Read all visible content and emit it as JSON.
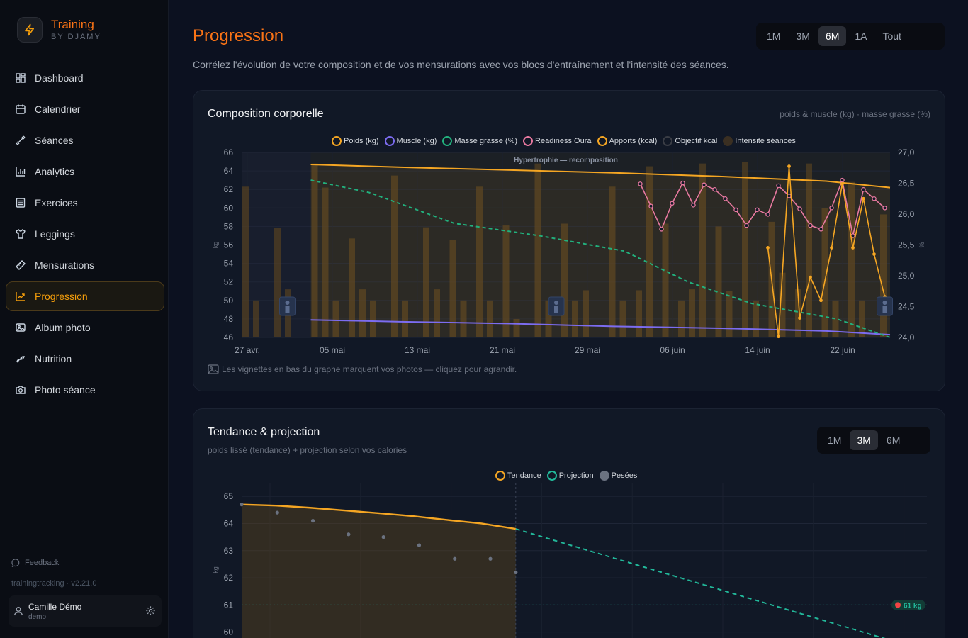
{
  "brand": {
    "title": "Training",
    "subtitle": "BY DJAMY"
  },
  "nav": [
    {
      "label": "Dashboard",
      "icon": "dashboard-icon",
      "active": false
    },
    {
      "label": "Calendrier",
      "icon": "calendar-icon",
      "active": false
    },
    {
      "label": "Séances",
      "icon": "dumbbell-icon",
      "active": false
    },
    {
      "label": "Analytics",
      "icon": "bar-chart-icon",
      "active": false
    },
    {
      "label": "Exercices",
      "icon": "list-icon",
      "active": false
    },
    {
      "label": "Leggings",
      "icon": "shirt-icon",
      "active": false
    },
    {
      "label": "Mensurations",
      "icon": "ruler-icon",
      "active": false
    },
    {
      "label": "Progression",
      "icon": "trend-icon",
      "active": true
    },
    {
      "label": "Album photo",
      "icon": "image-icon",
      "active": false
    },
    {
      "label": "Nutrition",
      "icon": "food-icon",
      "active": false
    },
    {
      "label": "Photo séance",
      "icon": "camera-icon",
      "active": false
    }
  ],
  "footer": {
    "feedback": "Feedback",
    "version": "trainingtracking · v2.21.0"
  },
  "user": {
    "name": "Camille Démo",
    "handle": "demo"
  },
  "page": {
    "title": "Progression",
    "description": "Corrélez l'évolution de votre composition et de vos mensurations avec vos blocs d'entraînement et l'intensité des séances.",
    "ranges": [
      "1M",
      "3M",
      "6M",
      "1A",
      "Tout"
    ],
    "active_range": "6M"
  },
  "colors": {
    "accent": "#f97316",
    "weight": "#f5a623",
    "muscle": "#7c6cf0",
    "fat": "#22b07d",
    "readiness": "#e879a0",
    "intake": "#f5a623",
    "projection": "#22b89a"
  },
  "composition": {
    "title": "Composition corporelle",
    "units": "poids & muscle (kg) · masse grasse (%)",
    "legend": [
      "Poids (kg)",
      "Muscle (kg)",
      "Masse grasse (%)",
      "Readiness Oura",
      "Apports (kcal)",
      "Objectif kcal",
      "Intensité séances"
    ],
    "block_label": "Hypertrophie — recomposition",
    "hint": "Les vignettes en bas du graphe marquent vos photos — cliquez pour agrandir.",
    "chart_data": {
      "type": "line",
      "x_ticks": [
        "27 avr.",
        "05 mai",
        "13 mai",
        "21 mai",
        "29 mai",
        "06 juin",
        "14 juin",
        "22 juin"
      ],
      "y_left_ticks": [
        66,
        64,
        62,
        60,
        58,
        56,
        54,
        52,
        50,
        48,
        46
      ],
      "y_right_ticks": [
        "27,0",
        "26,5",
        "26,0",
        "25,5",
        "25,0",
        "24,5",
        "24,0"
      ],
      "ylabel_left": "kg",
      "ylabel_right": "%",
      "ylim_left": [
        46,
        66
      ],
      "ylim_right": [
        24.0,
        27.0
      ],
      "day_range": [
        0,
        61
      ],
      "series": [
        {
          "name": "Poids (kg)",
          "days": [
            6.5,
            15,
            25,
            35,
            45,
            55,
            61
          ],
          "values": [
            64.7,
            64.4,
            64.1,
            63.8,
            63.4,
            62.9,
            62.2
          ]
        },
        {
          "name": "Muscle (kg)",
          "days": [
            6.5,
            15,
            25,
            35,
            45,
            55,
            61
          ],
          "values": [
            47.9,
            47.7,
            47.5,
            47.2,
            47.0,
            46.7,
            46.3
          ]
        },
        {
          "name": "Masse grasse (%)",
          "days": [
            6.5,
            12,
            20,
            28,
            36,
            42,
            48,
            56,
            61
          ],
          "values": [
            26.55,
            26.35,
            25.85,
            25.65,
            25.4,
            24.9,
            24.55,
            24.3,
            24.0
          ]
        },
        {
          "name": "Readiness Oura",
          "days": [
            37.5,
            38.5,
            39.5,
            40.5,
            41.5,
            42.5,
            43.5,
            44.5,
            45.5,
            46.5,
            47.5,
            48.5,
            49.5,
            50.5,
            51.5,
            52.5,
            53.5,
            54.5,
            55.5,
            56.5,
            57.5,
            58.5,
            59.5,
            60.5
          ],
          "values": [
            62.6,
            60.2,
            57.7,
            60.5,
            62.7,
            60.3,
            62.5,
            62.0,
            61.0,
            59.8,
            58.1,
            59.8,
            59.3,
            62.4,
            61.3,
            59.9,
            58.1,
            57.7,
            60.0,
            63.0,
            57.0,
            62.0,
            61.0,
            60.0
          ]
        },
        {
          "name": "Apports (kcal)",
          "values_raw": "line on left scale",
          "days": [
            49.5,
            50.5,
            51.5,
            52.5,
            53.5,
            54.5,
            55.5,
            56.5,
            57.5,
            58.5,
            59.5,
            60.5
          ],
          "values": [
            55.7,
            46.1,
            64.5,
            48.1,
            52.5,
            50.0,
            55.7,
            62.6,
            55.7,
            61.0,
            55.0,
            50.4
          ]
        }
      ],
      "intensity_bars": {
        "days": [
          0,
          1,
          3,
          4,
          6.5,
          7.5,
          8.5,
          10,
          11,
          12,
          14,
          15,
          17,
          18,
          19.5,
          20.5,
          22,
          23,
          24.5,
          25.5,
          27.5,
          28.5,
          30,
          31,
          32,
          34.5,
          35.5,
          37,
          38,
          39.5,
          41,
          42,
          43,
          44.5,
          45.5,
          47,
          48,
          49.5,
          50.5,
          52,
          53,
          54.5,
          55.5,
          57,
          58,
          60
        ],
        "values": [
          62.3,
          50.0,
          57.8,
          51.2,
          64.8,
          62.2,
          50.0,
          56.7,
          51.2,
          50.0,
          63.5,
          50.0,
          57.9,
          51.2,
          56.5,
          50.0,
          62.3,
          50.0,
          58.1,
          48.0,
          64.8,
          50.0,
          58.3,
          50.0,
          51.1,
          62.3,
          50.0,
          51.1,
          64.5,
          58.3,
          50.0,
          51.2,
          64.8,
          58.0,
          51.0,
          65.0,
          50.0,
          58.5,
          53.0,
          51.2,
          64.8,
          60.0,
          50.0,
          62.8,
          50.0,
          59.3
        ]
      }
    }
  },
  "trend": {
    "title": "Tendance & projection",
    "subtitle": "poids lissé (tendance) + projection selon vos calories",
    "ranges": [
      "1M",
      "3M",
      "6M"
    ],
    "active_range": "3M",
    "legend": [
      "Tendance",
      "Projection",
      "Pesées"
    ],
    "target_label": "61 kg",
    "chart_data": {
      "type": "line",
      "ylabel": "kg",
      "y_ticks": [
        65,
        64,
        63,
        62,
        61,
        60
      ],
      "ylim": [
        59.6,
        65.5
      ],
      "x_domain": [
        0,
        100
      ],
      "target": 61,
      "series": [
        {
          "name": "Tendance",
          "x": [
            0,
            5,
            10,
            15,
            20,
            25,
            30,
            35,
            40
          ],
          "y": [
            64.7,
            64.66,
            64.58,
            64.48,
            64.38,
            64.27,
            64.13,
            64.0,
            63.8
          ]
        },
        {
          "name": "Projection",
          "x": [
            40,
            100
          ],
          "y": [
            63.8,
            59.3
          ]
        },
        {
          "name": "Pesées",
          "x": [
            0,
            5.2,
            10.4,
            15.6,
            20.7,
            25.9,
            31.1,
            36.3,
            40
          ],
          "y": [
            64.7,
            64.4,
            64.1,
            63.6,
            63.5,
            63.2,
            62.7,
            62.7,
            62.2
          ]
        }
      ]
    }
  }
}
